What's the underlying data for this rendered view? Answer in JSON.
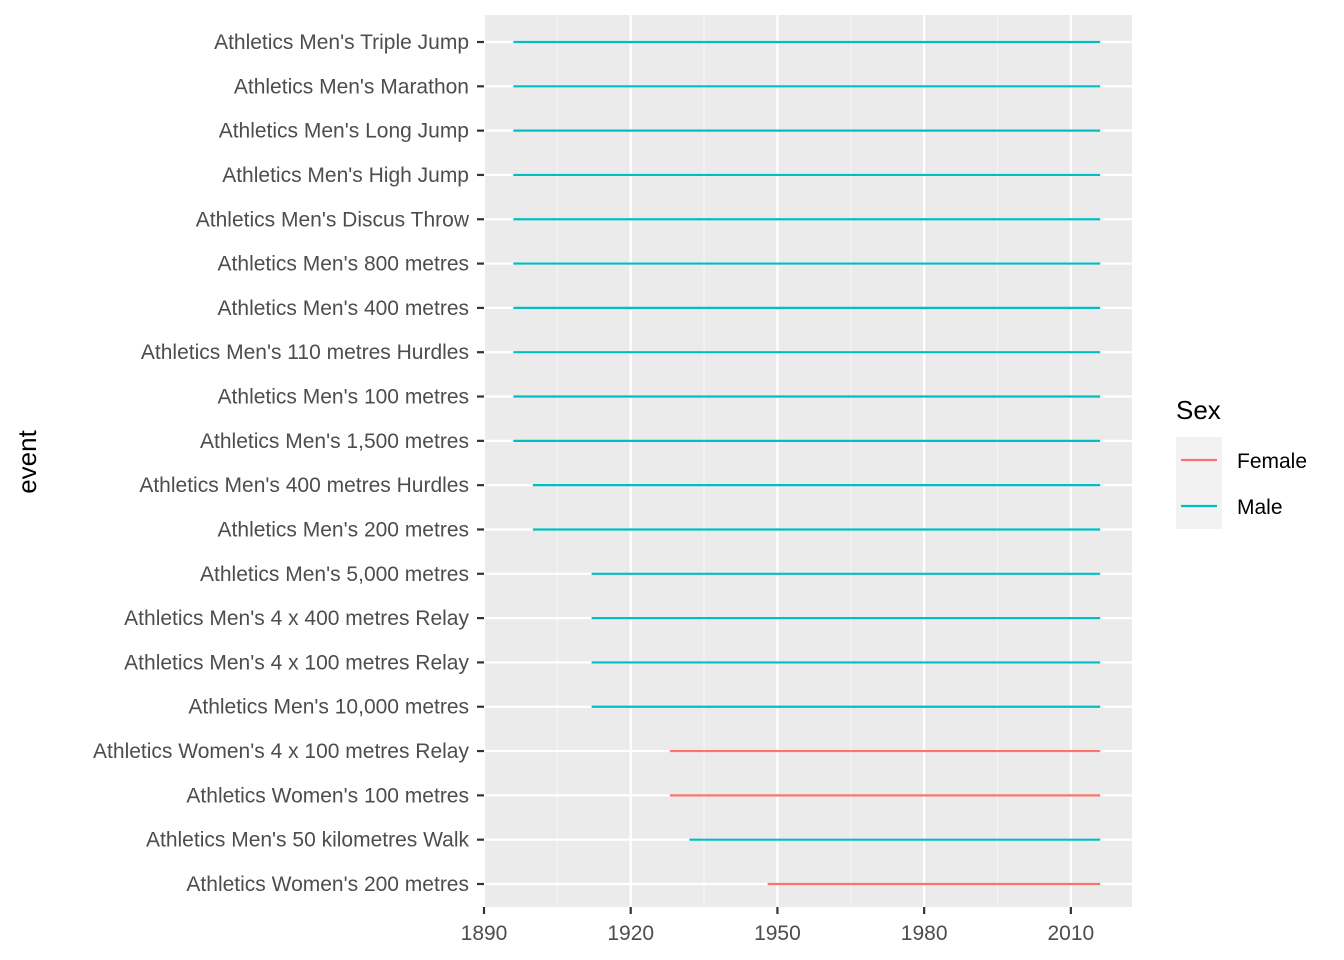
{
  "chart_data": {
    "type": "line",
    "title": "",
    "xlabel": "",
    "ylabel": "event",
    "xlim": [
      1890,
      2022.5
    ],
    "x_ticks": [
      1890,
      1920,
      1950,
      1980,
      2010
    ],
    "x_minor_ticks": [
      1905,
      1935,
      1965,
      1995
    ],
    "grid": true,
    "legend": {
      "title": "Sex",
      "placement": "right",
      "entries": [
        {
          "name": "Female",
          "color": "#F8766D"
        },
        {
          "name": "Male",
          "color": "#00BFC4"
        }
      ]
    },
    "categories": [
      "Athletics Men's Triple Jump",
      "Athletics Men's Marathon",
      "Athletics Men's Long Jump",
      "Athletics Men's High Jump",
      "Athletics Men's Discus Throw",
      "Athletics Men's 800 metres",
      "Athletics Men's 400 metres",
      "Athletics Men's 110 metres Hurdles",
      "Athletics Men's 100 metres",
      "Athletics Men's 1,500 metres",
      "Athletics Men's 400 metres Hurdles",
      "Athletics Men's 200 metres",
      "Athletics Men's 5,000 metres",
      "Athletics Men's 4 x 400 metres Relay",
      "Athletics Men's 4 x 100 metres Relay",
      "Athletics Men's 10,000 metres",
      "Athletics Women's 4 x 100 metres Relay",
      "Athletics Women's 100 metres",
      "Athletics Men's 50 kilometres Walk",
      "Athletics Women's 200 metres"
    ],
    "segments": [
      {
        "event": "Athletics Men's Triple Jump",
        "sex": "Male",
        "start": 1896,
        "end": 2016
      },
      {
        "event": "Athletics Men's Marathon",
        "sex": "Male",
        "start": 1896,
        "end": 2016
      },
      {
        "event": "Athletics Men's Long Jump",
        "sex": "Male",
        "start": 1896,
        "end": 2016
      },
      {
        "event": "Athletics Men's High Jump",
        "sex": "Male",
        "start": 1896,
        "end": 2016
      },
      {
        "event": "Athletics Men's Discus Throw",
        "sex": "Male",
        "start": 1896,
        "end": 2016
      },
      {
        "event": "Athletics Men's 800 metres",
        "sex": "Male",
        "start": 1896,
        "end": 2016
      },
      {
        "event": "Athletics Men's 400 metres",
        "sex": "Male",
        "start": 1896,
        "end": 2016
      },
      {
        "event": "Athletics Men's 110 metres Hurdles",
        "sex": "Male",
        "start": 1896,
        "end": 2016
      },
      {
        "event": "Athletics Men's 100 metres",
        "sex": "Male",
        "start": 1896,
        "end": 2016
      },
      {
        "event": "Athletics Men's 1,500 metres",
        "sex": "Male",
        "start": 1896,
        "end": 2016
      },
      {
        "event": "Athletics Men's 400 metres Hurdles",
        "sex": "Male",
        "start": 1900,
        "end": 2016
      },
      {
        "event": "Athletics Men's 200 metres",
        "sex": "Male",
        "start": 1900,
        "end": 2016
      },
      {
        "event": "Athletics Men's 5,000 metres",
        "sex": "Male",
        "start": 1912,
        "end": 2016
      },
      {
        "event": "Athletics Men's 4 x 400 metres Relay",
        "sex": "Male",
        "start": 1912,
        "end": 2016
      },
      {
        "event": "Athletics Men's 4 x 100 metres Relay",
        "sex": "Male",
        "start": 1912,
        "end": 2016
      },
      {
        "event": "Athletics Men's 10,000 metres",
        "sex": "Male",
        "start": 1912,
        "end": 2016
      },
      {
        "event": "Athletics Women's 4 x 100 metres Relay",
        "sex": "Female",
        "start": 1928,
        "end": 2016
      },
      {
        "event": "Athletics Women's 100 metres",
        "sex": "Female",
        "start": 1928,
        "end": 2016
      },
      {
        "event": "Athletics Men's 50 kilometres Walk",
        "sex": "Male",
        "start": 1932,
        "end": 2016
      },
      {
        "event": "Athletics Women's 200 metres",
        "sex": "Female",
        "start": 1948,
        "end": 2016
      }
    ]
  },
  "colors": {
    "panel_background": "#EBEBEB",
    "grid_major": "#FFFFFF",
    "grid_minor": "#F5F5F5",
    "tick_text": "#4D4D4D",
    "tick_mark": "#333333"
  }
}
